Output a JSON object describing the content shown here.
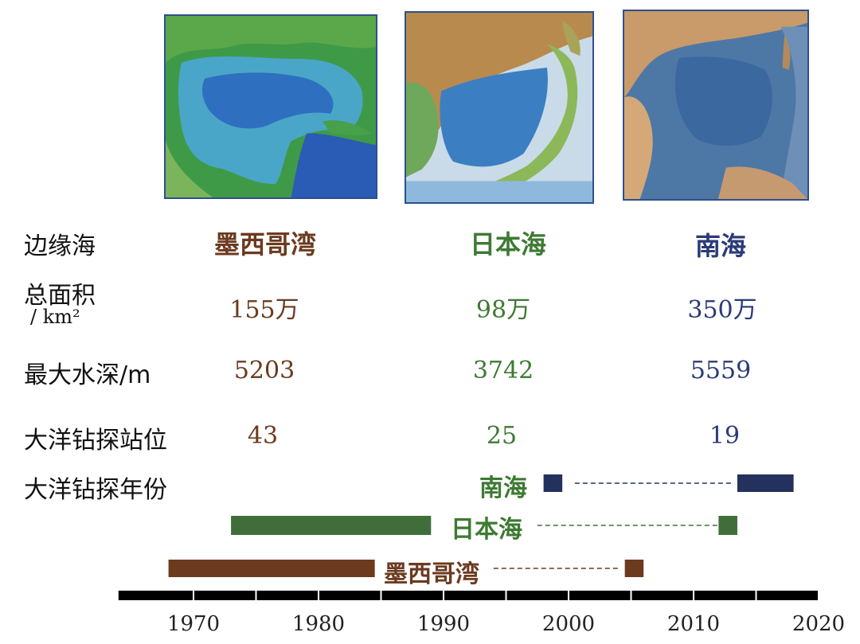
{
  "seas": [
    {
      "name": "墨西哥湾",
      "area": "155万",
      "depth": "5203",
      "sites": "43",
      "color": "#6b3a1f",
      "map_icon": "gulf-of-mexico-map"
    },
    {
      "name": "日本海",
      "area": "98万",
      "depth": "3742",
      "sites": "25",
      "color": "#3d7a32",
      "map_icon": "sea-of-japan-map"
    },
    {
      "name": "南海",
      "area": "350万",
      "depth": "5559",
      "sites": "19",
      "color": "#2b3a78",
      "map_icon": "south-china-sea-map"
    }
  ],
  "row_labels": {
    "sea": "边缘海",
    "area": "总面积",
    "area_unit": "/ km²",
    "depth": "最大水深/m",
    "sites": "大洋钻探站位",
    "years": "大洋钻探年份"
  },
  "timeline": {
    "axis_ticks": [
      "1970",
      "1980",
      "1990",
      "2000",
      "2010",
      "2020"
    ],
    "axis_range": [
      1964,
      2020
    ],
    "series": [
      {
        "name": "南海",
        "color": "#24305e",
        "periods": [
          [
            1998,
            1999.5
          ],
          [
            2013.5,
            2018
          ]
        ],
        "dashed_gap": [
          2000.5,
          2013
        ]
      },
      {
        "name": "日本海",
        "color": "#3f6e3b",
        "periods": [
          [
            1973,
            1989
          ],
          [
            2012,
            2013.5
          ]
        ],
        "dashed_gap": [
          1997.5,
          2012
        ]
      },
      {
        "name": "墨西哥湾",
        "color": "#6b3a1f",
        "periods": [
          [
            1968,
            1984.5
          ],
          [
            2004.5,
            2006
          ]
        ],
        "dashed_gap": [
          1994,
          2004
        ]
      }
    ]
  }
}
